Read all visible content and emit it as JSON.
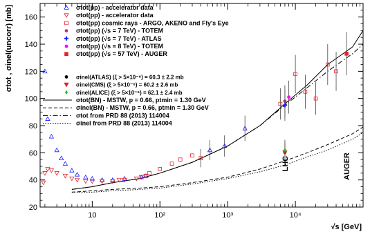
{
  "chart_data": {
    "type": "scatter",
    "x_scale": "log",
    "xlim": [
      1.7,
      100000
    ],
    "ylim": [
      20,
      170
    ],
    "xlabel": "√s [GeV]",
    "ylabel": "σtot , σinel(uncorr) [mb]",
    "yticks": [
      20,
      40,
      60,
      80,
      100,
      120,
      140,
      160
    ],
    "xticks": [
      {
        "v": 10,
        "label": "10"
      },
      {
        "v": 100,
        "label": "10²"
      },
      {
        "v": 1000,
        "label": "10³"
      },
      {
        "v": 10000,
        "label": "10⁴"
      }
    ],
    "annotations": [
      {
        "text": "LHC",
        "x": 7000,
        "y": 52
      },
      {
        "text": "AUGER",
        "x": 57000,
        "y": 50
      }
    ],
    "legend_position": "top-left",
    "series": [
      {
        "name": "σtot(p̄p) - accelerator data",
        "marker": "triangle-open",
        "color": "#1a1aff",
        "x": [
          2.0,
          2.2,
          2.5,
          3.0,
          3.5,
          4.0,
          5.0,
          6.0,
          8.0,
          10,
          14,
          20,
          30,
          53,
          62,
          546,
          900,
          1800
        ],
        "y": [
          120,
          85,
          72,
          62,
          56,
          52,
          47,
          44,
          42,
          41,
          40,
          40,
          41,
          42,
          43,
          62,
          65,
          78
        ]
      },
      {
        "name": "σtot(pp) - accelerator data",
        "marker": "triangle-down-open",
        "color": "#e8202a",
        "x": [
          1.9,
          2.0,
          2.2,
          2.5,
          3.0,
          4.0,
          5.0,
          6.0,
          8.0,
          10,
          14,
          20,
          25,
          30,
          45,
          53,
          62
        ],
        "y": [
          38,
          45,
          48,
          47,
          45,
          43,
          41,
          40,
          39,
          39,
          39,
          39,
          40,
          40,
          41,
          42,
          43
        ]
      },
      {
        "name": "σtot(pp) cosmic rays - ARGO, AKENO and Fly's Eye",
        "marker": "square-open",
        "color": "#e8202a",
        "x": [
          70,
          100,
          150,
          200,
          300,
          400,
          6000,
          10000,
          14000,
          20000,
          30000,
          40000
        ],
        "y": [
          45,
          48,
          52,
          55,
          58,
          56,
          96,
          118,
          105,
          100,
          125,
          120
        ]
      },
      {
        "name": "σtot(pp) (√s = 7 TeV) - TOTEM",
        "marker": "circle",
        "color": "#c03080",
        "x": [
          7000
        ],
        "y": [
          98
        ]
      },
      {
        "name": "σtot(pp) (√s = 7 TeV) - ATLAS",
        "marker": "cross",
        "color": "#2020ff",
        "x": [
          7000
        ],
        "y": [
          95
        ]
      },
      {
        "name": "σtot(pp) (√s = 8 TeV) - TOTEM",
        "marker": "circle",
        "color": "#ff00ff",
        "x": [
          8000
        ],
        "y": [
          101
        ]
      },
      {
        "name": "σtot(pp) (√s = 57 TeV) - AUGER",
        "marker": "square",
        "color": "#e8202a",
        "x": [
          57000
        ],
        "y": [
          133
        ]
      },
      {
        "name": "σinel(ATLAS) (ξ > 5×10⁻⁶) = 60.3 ± 2.2 mb",
        "marker": "circle",
        "color": "#000000",
        "x": [
          7000
        ],
        "y": [
          60.3
        ]
      },
      {
        "name": "σinel(CMS) (ξ > 5×10⁻⁶) = 60.2 ± 2.6 mb",
        "marker": "triangle-down",
        "color": "#e8202a",
        "x": [
          7000
        ],
        "y": [
          60.2
        ]
      },
      {
        "name": "σinel(ALICE) (ξ > 5×10⁻⁶) = 62.1 ± 2.4 mb",
        "marker": "diamond",
        "color": "#20c020",
        "x": [
          7000
        ],
        "y": [
          62.1
        ]
      },
      {
        "name": "σtot(BN) - MSTW, p = 0.66, ptmin = 1.30 GeV",
        "line": "solid",
        "x": [
          5,
          10,
          20,
          50,
          100,
          300,
          1000,
          3000,
          7000,
          15000,
          30000,
          70000,
          100000
        ],
        "y": [
          33,
          35,
          38,
          41,
          45,
          53,
          65,
          80,
          96,
          110,
          125,
          138,
          150
        ]
      },
      {
        "name": "σinel(BN) - MSTW, p = 0.66, ptmin = 1.30 GeV",
        "line": "dashed",
        "x": [
          5,
          10,
          20,
          50,
          100,
          300,
          1000,
          3000,
          7000,
          15000,
          30000,
          70000,
          100000
        ],
        "y": [
          31,
          32,
          33,
          34,
          35,
          38,
          42,
          48,
          54,
          60,
          66,
          74,
          79
        ]
      },
      {
        "name": "σtot from PRD 88 (2013) 114004",
        "line": "dashdot",
        "x": [
          5,
          10,
          20,
          50,
          100,
          300,
          1000,
          3000,
          7000,
          15000,
          30000,
          70000,
          100000
        ],
        "y": [
          33,
          35,
          38,
          41,
          45,
          53,
          65,
          80,
          95,
          108,
          120,
          133,
          140
        ]
      },
      {
        "name": "σinel from PRD 88 (2013) 114004",
        "line": "dotted",
        "x": [
          5,
          10,
          20,
          50,
          100,
          300,
          1000,
          3000,
          7000,
          15000,
          30000,
          70000,
          100000
        ],
        "y": [
          31,
          31,
          32,
          33,
          34,
          37,
          41,
          46,
          51,
          57,
          62,
          70,
          75
        ]
      }
    ]
  }
}
